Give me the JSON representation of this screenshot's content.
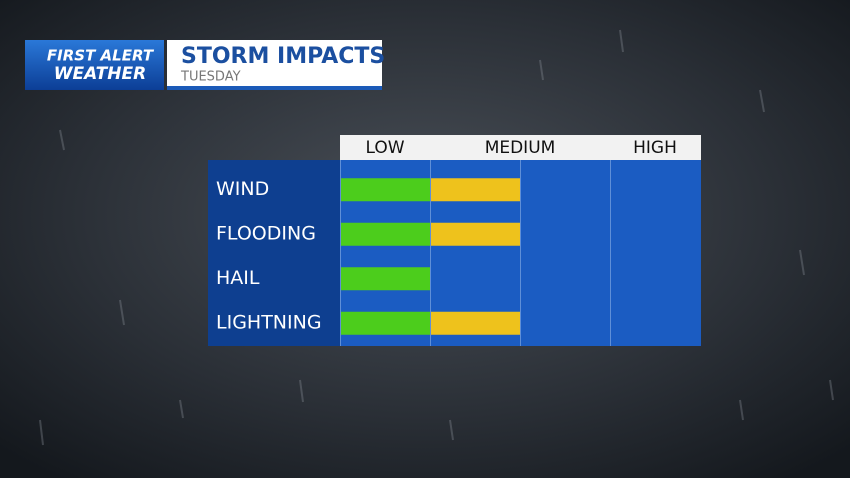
{
  "header": {
    "logo_top": "FIRST ALERT",
    "logo_bottom": "WEATHER",
    "title": "STORM IMPACTS",
    "subtitle": "TUESDAY"
  },
  "chart_data": {
    "type": "bar",
    "orientation": "horizontal",
    "categories": [
      "WIND",
      "FLOODING",
      "HAIL",
      "LIGHTNING"
    ],
    "values": [
      2,
      2,
      1,
      2
    ],
    "level_colors": [
      "#4ccd1c",
      "#eec21c"
    ],
    "xlim": [
      0,
      4
    ],
    "xticks": [
      {
        "value": 0.5,
        "label": "LOW"
      },
      {
        "value": 2,
        "label": "MEDIUM"
      },
      {
        "value": 3.5,
        "label": "HIGH"
      }
    ]
  }
}
